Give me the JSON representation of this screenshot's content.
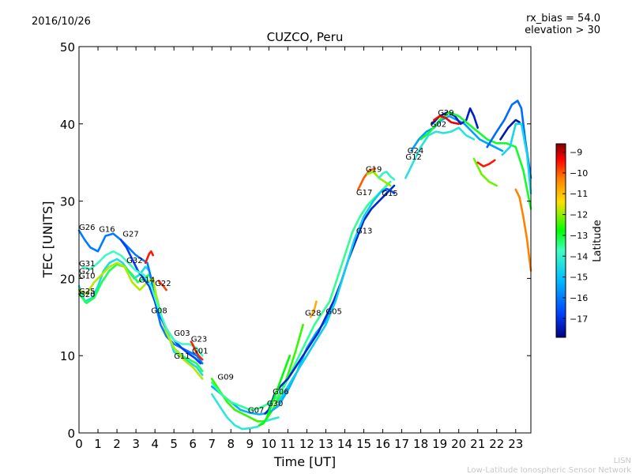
{
  "header": {
    "date": "2016/10/26",
    "rx_bias": "rx_bias = 54.0",
    "elevation": "elevation > 30"
  },
  "footer": {
    "org_short": "LISN",
    "org_full": "Low-Latitude Ionospheric Sensor Network"
  },
  "colorbar": {
    "label": "Latitude",
    "ticks": [
      "−9",
      "−10",
      "−11",
      "−12",
      "−13",
      "−14",
      "−15",
      "−16",
      "−17"
    ],
    "range": [
      -17.9,
      -8.6
    ],
    "colors": [
      "#00007f",
      "#0040ff",
      "#00bfff",
      "#40ffbf",
      "#00ff00",
      "#ffe000",
      "#ff7f00",
      "#ff0000",
      "#7f0000"
    ]
  },
  "chart_data": {
    "type": "scatter",
    "title": "CUZCO, Peru",
    "xlabel": "Time [UT]",
    "ylabel": "TEC [UNITS]",
    "xlim": [
      0,
      23.8
    ],
    "ylim": [
      0,
      50
    ],
    "xticks": [
      0,
      1,
      2,
      3,
      4,
      5,
      6,
      7,
      8,
      9,
      10,
      11,
      12,
      13,
      14,
      15,
      16,
      17,
      18,
      19,
      20,
      21,
      22,
      23
    ],
    "yticks": [
      0,
      10,
      20,
      30,
      40,
      50
    ],
    "satellite_labels": [
      {
        "name": "G26",
        "x": 0.0,
        "y": 26.3
      },
      {
        "name": "G16",
        "x": 1.05,
        "y": 26.0
      },
      {
        "name": "G27",
        "x": 2.3,
        "y": 25.4
      },
      {
        "name": "G31",
        "x": 0.0,
        "y": 21.6
      },
      {
        "name": "G21",
        "x": 0.0,
        "y": 20.6
      },
      {
        "name": "G10",
        "x": 0.0,
        "y": 20.0
      },
      {
        "name": "G32",
        "x": 2.5,
        "y": 22.0
      },
      {
        "name": "G14",
        "x": 3.15,
        "y": 19.5
      },
      {
        "name": "G22",
        "x": 4.0,
        "y": 19.0
      },
      {
        "name": "G25",
        "x": 0.0,
        "y": 18.0
      },
      {
        "name": "G20",
        "x": 0.0,
        "y": 17.6
      },
      {
        "name": "G08",
        "x": 3.8,
        "y": 15.5
      },
      {
        "name": "G03",
        "x": 5.0,
        "y": 12.6
      },
      {
        "name": "G23",
        "x": 5.9,
        "y": 11.8
      },
      {
        "name": "G01",
        "x": 5.95,
        "y": 10.3
      },
      {
        "name": "G11",
        "x": 5.0,
        "y": 9.6
      },
      {
        "name": "G09",
        "x": 7.3,
        "y": 6.9
      },
      {
        "name": "G07",
        "x": 8.9,
        "y": 2.6
      },
      {
        "name": "G30",
        "x": 9.9,
        "y": 3.5
      },
      {
        "name": "G06",
        "x": 10.2,
        "y": 5.0
      },
      {
        "name": "G28",
        "x": 11.9,
        "y": 15.2
      },
      {
        "name": "G05",
        "x": 13.0,
        "y": 15.4
      },
      {
        "name": "G13",
        "x": 14.6,
        "y": 25.8
      },
      {
        "name": "G17",
        "x": 14.6,
        "y": 30.8
      },
      {
        "name": "G19",
        "x": 15.1,
        "y": 33.8
      },
      {
        "name": "G15",
        "x": 15.95,
        "y": 30.7
      },
      {
        "name": "G24",
        "x": 17.3,
        "y": 36.2
      },
      {
        "name": "G12",
        "x": 17.2,
        "y": 35.4
      },
      {
        "name": "G02",
        "x": 18.5,
        "y": 39.6
      },
      {
        "name": "G29",
        "x": 18.9,
        "y": 41.1
      }
    ],
    "series": [
      {
        "lat": -14.5,
        "x": [
          0,
          0.3,
          0.7,
          1,
          1.3,
          1.6,
          2,
          2.3,
          2.6,
          2.9,
          3.2,
          3.5,
          3.7,
          4,
          4.2,
          4.5,
          4.8,
          5,
          5.3,
          5.6,
          5.9,
          6.2,
          6.5
        ],
        "y": [
          19,
          17,
          17.5,
          19,
          21,
          22,
          22.5,
          22,
          21,
          20,
          20.5,
          21.5,
          21,
          18,
          16,
          14,
          12,
          10.5,
          10,
          9.5,
          9,
          8.5,
          7.5
        ]
      },
      {
        "lat": -13.2,
        "x": [
          0,
          0.4,
          0.8,
          1.2,
          1.6,
          2,
          2.4,
          2.8,
          3.1,
          3.4,
          3.7,
          4,
          4.3,
          4.6,
          5,
          5.4,
          5.8,
          6.2,
          6.5
        ],
        "y": [
          18,
          16.8,
          17.5,
          19.5,
          21,
          21.8,
          21.5,
          20.5,
          19.5,
          20,
          20.5,
          18.5,
          15.5,
          13,
          11,
          10,
          9.5,
          9,
          8
        ]
      },
      {
        "lat": -16.0,
        "x": [
          0,
          0.3,
          0.6,
          1,
          1.4,
          1.8,
          2.2,
          2.6,
          3,
          3.3,
          3.6,
          3.8,
          4,
          4.3,
          4.6,
          5,
          5.4,
          5.8,
          6.2,
          6.5
        ],
        "y": [
          26.2,
          25,
          24,
          23.5,
          25.5,
          25.8,
          25,
          24,
          23,
          22.5,
          22,
          20,
          17,
          14,
          12.5,
          11.5,
          11,
          10.5,
          10,
          9
        ]
      },
      {
        "lat": -11.8,
        "x": [
          0,
          0.4,
          0.8,
          1.2,
          1.6,
          2,
          2.4,
          2.8,
          3.2,
          3.6,
          3.9,
          4.2,
          4.6,
          5,
          5.5,
          6,
          6.5
        ],
        "y": [
          18.5,
          18,
          19.5,
          20.5,
          21.5,
          22,
          21.5,
          19.5,
          18.5,
          19.5,
          20,
          16,
          13,
          11,
          9.5,
          8.5,
          7
        ]
      },
      {
        "lat": -16.8,
        "x": [
          2.2,
          2.5,
          2.8,
          3.1,
          3.4,
          3.7,
          4,
          4.3,
          4.6,
          5,
          5.4,
          5.8,
          6.1,
          6.4
        ],
        "y": [
          25,
          24,
          22.5,
          21,
          20,
          19,
          17,
          15,
          13.5,
          12,
          11,
          10.2,
          9.7,
          9
        ]
      },
      {
        "lat": -13.8,
        "x": [
          0.2,
          0.6,
          1,
          1.4,
          1.8,
          2.2,
          2.6,
          3,
          3.4,
          3.8,
          4.2,
          4.6,
          5,
          5.4,
          5.8,
          6.2,
          6.5
        ],
        "y": [
          21.5,
          21.2,
          22,
          23,
          23.5,
          23,
          22,
          21,
          20.5,
          19,
          16,
          13.5,
          12,
          11.5,
          11.5,
          11,
          10
        ]
      },
      {
        "lat": -9.5,
        "x": [
          3.5,
          3.6,
          3.7,
          3.8,
          3.9
        ],
        "y": [
          22,
          22.6,
          23.2,
          23.5,
          23
        ]
      },
      {
        "lat": -9.8,
        "x": [
          4.2,
          4.3,
          4.45,
          4.6
        ],
        "y": [
          19.7,
          19.4,
          19,
          18.5
        ]
      },
      {
        "lat": -9.6,
        "x": [
          5.9,
          6,
          6.1,
          6.3,
          6.5
        ],
        "y": [
          11.8,
          11.4,
          10.8,
          10,
          9.5
        ]
      },
      {
        "lat": -12.5,
        "x": [
          7,
          7.4,
          7.8,
          8.2,
          8.6,
          9,
          9.4,
          9.8,
          10.2,
          10.6,
          11,
          11.4,
          11.8
        ],
        "y": [
          7,
          5.5,
          4,
          3,
          2.5,
          2,
          1.5,
          1.5,
          3,
          5,
          7.5,
          10.5,
          14
        ]
      },
      {
        "lat": -14.2,
        "x": [
          7,
          7.4,
          7.8,
          8.2,
          8.6,
          9,
          9.4,
          9.8,
          10.2,
          10.5
        ],
        "y": [
          5,
          3.5,
          2,
          1,
          0.5,
          0.6,
          0.8,
          1.5,
          1.8,
          2
        ]
      },
      {
        "lat": -15.3,
        "x": [
          7,
          7.5,
          8,
          8.5,
          9,
          9.5,
          10,
          10.5,
          11,
          11.5,
          12,
          12.5,
          13,
          13.5,
          14
        ],
        "y": [
          6,
          5,
          4,
          3,
          2.6,
          2.4,
          2.6,
          3.5,
          5.5,
          8,
          11,
          13,
          14.5,
          17,
          21
        ]
      },
      {
        "lat": -13.5,
        "x": [
          7,
          7.5,
          8,
          8.5,
          9,
          9.5,
          10,
          10.4,
          10.8,
          11.2,
          11.6,
          12,
          12.4,
          12.8,
          13.2,
          13.6,
          14,
          14.4,
          14.8,
          15.2,
          15.6,
          16,
          16.4
        ],
        "y": [
          6.5,
          5,
          4,
          3.5,
          3,
          3.2,
          3.8,
          4.5,
          6,
          8,
          10,
          12,
          14,
          15.5,
          17,
          20,
          23,
          26,
          28,
          29.5,
          30.5,
          31.5,
          32.5
        ]
      },
      {
        "lat": -17.2,
        "x": [
          9.8,
          10,
          10.3,
          10.6,
          11,
          11.4,
          11.8,
          12.2,
          12.6,
          13,
          13.4,
          13.8,
          14.2,
          14.6,
          15,
          15.4,
          15.8,
          16.2,
          16.6
        ],
        "y": [
          2.5,
          3,
          5,
          6,
          7,
          8.5,
          10,
          11.5,
          13,
          15,
          17,
          19.5,
          22.5,
          25,
          27.5,
          29,
          30,
          31,
          32
        ]
      },
      {
        "lat": -12.8,
        "x": [
          9.5,
          9.7,
          9.9,
          10.2,
          10.5,
          10.8,
          11.1
        ],
        "y": [
          1,
          1.2,
          2,
          4,
          6,
          8,
          10
        ]
      },
      {
        "lat": -14.8,
        "x": [
          10.5,
          11,
          11.5,
          12,
          12.5,
          13,
          13.5,
          14,
          14.5,
          15,
          15.5,
          16
        ],
        "y": [
          4,
          6,
          8,
          10,
          12,
          14,
          17,
          21,
          25,
          28,
          30,
          31.5
        ]
      },
      {
        "lat": -10.8,
        "x": [
          12.2,
          12.3,
          12.4,
          12.5
        ],
        "y": [
          15,
          15.5,
          16,
          17
        ]
      },
      {
        "lat": -10.0,
        "x": [
          14.7,
          15,
          15.3,
          15.6
        ],
        "y": [
          31.5,
          33,
          34,
          34.2
        ]
      },
      {
        "lat": -12.0,
        "x": [
          15.2,
          15.5,
          15.8,
          16.1,
          16.4
        ],
        "y": [
          33.5,
          33.8,
          33,
          32.5,
          32
        ]
      },
      {
        "lat": -14.0,
        "x": [
          15.8,
          16,
          16.2,
          16.4,
          16.6
        ],
        "y": [
          33,
          33.6,
          33.8,
          33.2,
          32.8
        ]
      },
      {
        "lat": -16.5,
        "x": [
          16,
          16.2,
          16.4,
          16.6
        ],
        "y": [
          31.2,
          31.6,
          31.4,
          31
        ]
      },
      {
        "lat": -14.3,
        "x": [
          17.2,
          17.6,
          18,
          18.4,
          18.8,
          19.2,
          19.6,
          20,
          20.4,
          20.8
        ],
        "y": [
          33,
          35,
          37,
          38.5,
          39,
          38.8,
          39,
          39.5,
          38.5,
          38
        ]
      },
      {
        "lat": -15.5,
        "x": [
          17.5,
          17.9,
          18.3,
          18.7,
          19.1,
          19.5,
          19.9,
          20.3,
          20.7,
          21.1,
          21.5,
          21.9,
          22.3
        ],
        "y": [
          36.5,
          38,
          39,
          39.5,
          40.5,
          41,
          40.5,
          40,
          39,
          38,
          37.5,
          37,
          36.5
        ]
      },
      {
        "lat": -17.3,
        "x": [
          18.6,
          19,
          19.4,
          19.8,
          20.1,
          20.4,
          20.6,
          20.8,
          21
        ],
        "y": [
          40,
          41,
          41.5,
          41,
          40,
          40.5,
          42,
          41,
          39.5
        ]
      },
      {
        "lat": -13.0,
        "x": [
          18,
          18.5,
          19,
          19.5,
          20,
          20.5,
          21,
          21.5,
          22,
          22.5,
          23,
          23.4,
          23.8
        ],
        "y": [
          38,
          39,
          40.5,
          41.5,
          41,
          40,
          39,
          38,
          37.5,
          37.5,
          37,
          34,
          29
        ]
      },
      {
        "lat": -16.2,
        "x": [
          21.5,
          22,
          22.4,
          22.8,
          23.1,
          23.3,
          23.5,
          23.8
        ],
        "y": [
          37,
          39,
          40.5,
          42.5,
          43,
          42,
          38,
          33
        ]
      },
      {
        "lat": -17.5,
        "x": [
          22.2,
          22.6,
          23,
          23.2
        ],
        "y": [
          38,
          39.5,
          40.5,
          40.2
        ]
      },
      {
        "lat": -12.2,
        "x": [
          20.8,
          21.2,
          21.6,
          22
        ],
        "y": [
          35.5,
          33.5,
          32.5,
          32
        ]
      },
      {
        "lat": -14.6,
        "x": [
          22.3,
          22.7,
          23,
          23.3,
          23.6,
          23.8
        ],
        "y": [
          36,
          37,
          40,
          40,
          36,
          31
        ]
      },
      {
        "lat": -10.3,
        "x": [
          23,
          23.2,
          23.4,
          23.6,
          23.8
        ],
        "y": [
          31.5,
          30.5,
          28,
          25,
          21
        ]
      },
      {
        "lat": -9.3,
        "x": [
          18.7,
          19,
          19.3,
          19.6,
          20
        ],
        "y": [
          40.5,
          41,
          40.8,
          40.2,
          40
        ]
      },
      {
        "lat": -9.5,
        "x": [
          21,
          21.3,
          21.6,
          21.9
        ],
        "y": [
          35,
          34.5,
          34.8,
          35.3
        ]
      }
    ]
  }
}
